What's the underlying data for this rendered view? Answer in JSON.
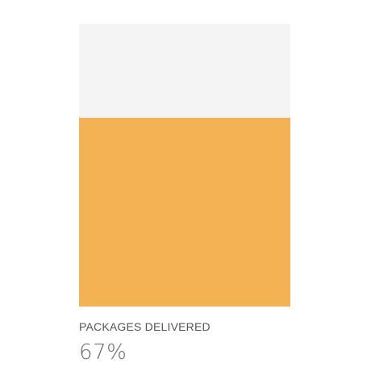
{
  "stat": {
    "label": "PACKAGES DELIVERED",
    "value_text": "67%",
    "progress_fraction": 0.67,
    "fill_color": "#f3b254",
    "track_color": "#f4f4f4"
  }
}
